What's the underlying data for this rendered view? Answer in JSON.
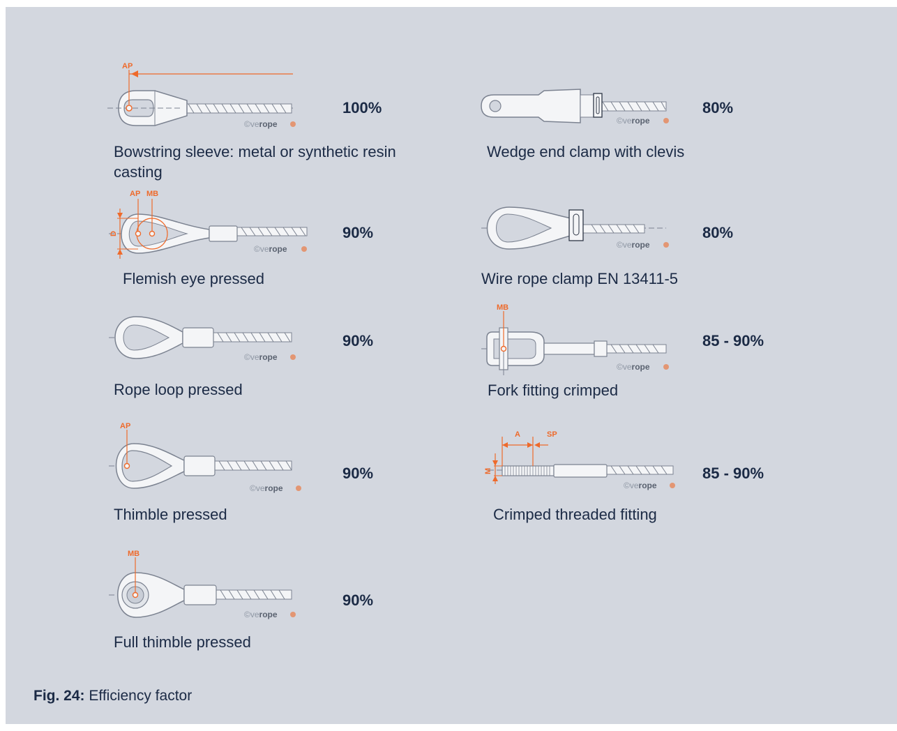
{
  "caption": {
    "prefix": "Fig. 24:",
    "text": "Efficiency factor"
  },
  "copyright": {
    "symbol": "©",
    "light": "ve",
    "bold": "rope"
  },
  "colors": {
    "panel": "#d3d7df",
    "text": "#1b2a45",
    "accent": "#ee6a2b",
    "steel": "#f4f5f7",
    "steel_outline": "#7b8290"
  },
  "items": [
    {
      "id": "bowstring-sleeve",
      "label": "Bowstring sleeve: metal or synthetic resin casting",
      "efficiency": "100%",
      "markers": {
        "ap": "AP"
      }
    },
    {
      "id": "flemish-eye",
      "label": "Flemish eye pressed",
      "efficiency": "90%",
      "markers": {
        "ap": "AP",
        "mb": "MB",
        "d": "D"
      }
    },
    {
      "id": "rope-loop",
      "label": "Rope loop pressed",
      "efficiency": "90%"
    },
    {
      "id": "thimble",
      "label": "Thimble pressed",
      "efficiency": "90%",
      "markers": {
        "ap": "AP"
      }
    },
    {
      "id": "full-thimble",
      "label": "Full thimble pressed",
      "efficiency": "90%",
      "markers": {
        "mb": "MB"
      }
    },
    {
      "id": "wedge-clamp",
      "label": "Wedge end clamp with clevis",
      "efficiency": "80%"
    },
    {
      "id": "wire-rope-clamp",
      "label": "Wire rope clamp EN 13411-5",
      "efficiency": "80%"
    },
    {
      "id": "fork-fitting",
      "label": "Fork fitting crimped",
      "efficiency": "85 - 90%",
      "markers": {
        "mb": "MB"
      }
    },
    {
      "id": "threaded-fitting",
      "label": "Crimped threaded fitting",
      "efficiency": "85 - 90%",
      "markers": {
        "a": "A",
        "sp": "SP",
        "m": "M"
      }
    }
  ]
}
